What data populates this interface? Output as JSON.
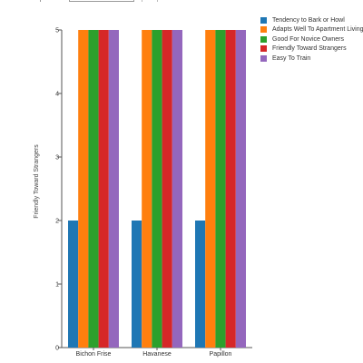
{
  "chart_data": {
    "type": "bar",
    "categories": [
      "Bichon Frise",
      "Havanese",
      "Papillon"
    ],
    "series": [
      {
        "name": "Tendency to Bark or Howl",
        "color": "#1f77b4",
        "values": [
          2,
          2,
          2
        ]
      },
      {
        "name": "Adapts Well To Apartment Living",
        "color": "#ff7f0e",
        "values": [
          5,
          5,
          5
        ]
      },
      {
        "name": "Good For Novice Owners",
        "color": "#2ca02c",
        "values": [
          5,
          5,
          5
        ]
      },
      {
        "name": "Friendly Toward Strangers",
        "color": "#d62728",
        "values": [
          5,
          5,
          5
        ]
      },
      {
        "name": "Easy To Train",
        "color": "#9467bd",
        "values": [
          5,
          5,
          5
        ]
      }
    ],
    "ylabel": "Friendly Toward Strangers",
    "xlabel": "",
    "ylim": [
      0,
      5
    ],
    "yticks": [
      0,
      1,
      2,
      3,
      4,
      5
    ],
    "legend_position": "top-right",
    "grid": false
  }
}
